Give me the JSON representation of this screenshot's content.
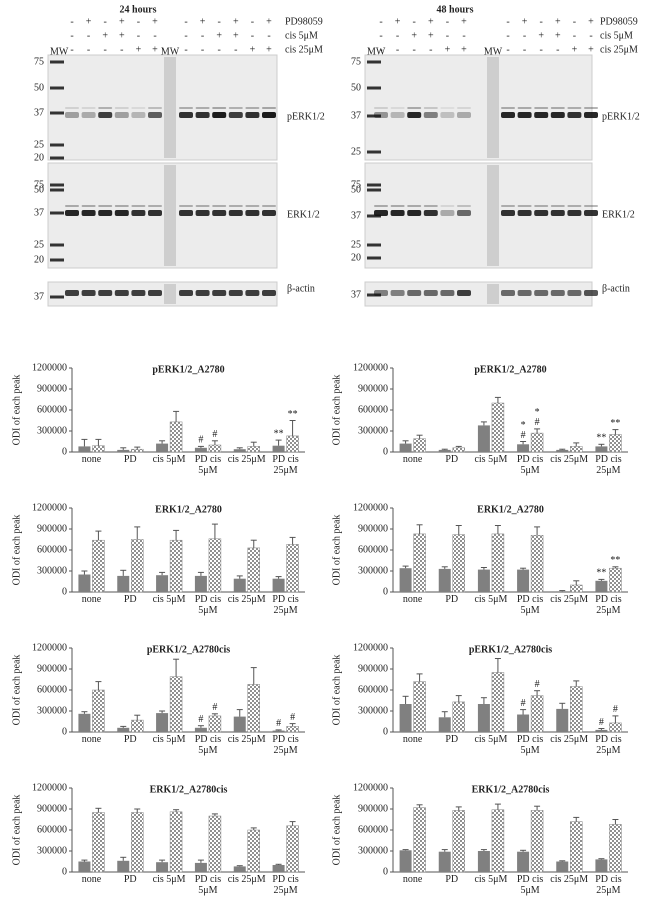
{
  "blots": [
    {
      "title": "24 hours",
      "mw": "MW",
      "mw2": "MW",
      "cell_lines": [
        "A2780",
        "A2780cis"
      ],
      "treatments": [
        {
          "name": "PD98059",
          "signs": [
            "-",
            "+",
            "-",
            "+",
            "-",
            "+",
            "-",
            "+",
            "-",
            "+",
            "-",
            "+"
          ]
        },
        {
          "name": "cis 5μM",
          "signs": [
            "-",
            "-",
            "+",
            "+",
            "-",
            "-",
            "-",
            "-",
            "+",
            "+",
            "-",
            "-"
          ]
        },
        {
          "name": "cis 25μM",
          "signs": [
            "-",
            "-",
            "-",
            "-",
            "+",
            "+",
            "-",
            "-",
            "-",
            "-",
            "+",
            "+"
          ]
        }
      ],
      "panels": [
        {
          "label": "pERK1/2",
          "markers": [
            75,
            50,
            37,
            25,
            20
          ]
        },
        {
          "label": "ERK1/2",
          "markers": [
            75,
            50,
            37,
            25,
            20
          ]
        },
        {
          "label": "β-actin",
          "markers": [
            37
          ]
        }
      ]
    },
    {
      "title": "48 hours",
      "mw": "MW",
      "mw2": "MW",
      "cell_lines": [
        "A2780",
        "A2780cis"
      ],
      "treatments": [
        {
          "name": "PD98059",
          "signs": [
            "-",
            "+",
            "-",
            "+",
            "-",
            "+",
            "-",
            "+",
            "-",
            "+",
            "-",
            "+"
          ]
        },
        {
          "name": "cis 5μM",
          "signs": [
            "-",
            "-",
            "+",
            "+",
            "-",
            "-",
            "-",
            "-",
            "+",
            "+",
            "-",
            "-"
          ]
        },
        {
          "name": "cis 25μM",
          "signs": [
            "-",
            "-",
            "-",
            "-",
            "+",
            "+",
            "-",
            "-",
            "-",
            "-",
            "+",
            "+"
          ]
        }
      ],
      "panels": [
        {
          "label": "pERK1/2",
          "markers": [
            75,
            50,
            37,
            25
          ]
        },
        {
          "label": "ERK1/2",
          "markers": [
            75,
            50,
            37,
            25,
            20
          ]
        },
        {
          "label": "β-actin",
          "markers": [
            37
          ]
        }
      ]
    }
  ],
  "chart_data": [
    {
      "type": "bar",
      "title": "pERK1/2_A2780",
      "y_label": "ODI of each peak",
      "categories": [
        "none",
        "PD",
        "cis 5μM",
        "PD cis 5μM",
        "cis 25μM",
        "PD cis 25μM"
      ],
      "ylim": [
        0,
        1200000
      ],
      "yticks": [
        0,
        300000,
        600000,
        900000,
        1200000
      ],
      "series": [
        {
          "color": "#808080",
          "values": [
            80000,
            30000,
            120000,
            60000,
            40000,
            90000
          ],
          "errors": [
            100000,
            30000,
            40000,
            20000,
            20000,
            80000
          ],
          "marks": [
            null,
            null,
            null,
            [
              "#"
            ],
            null,
            [
              "**"
            ]
          ]
        },
        {
          "color": "#909090",
          "pattern": "checker",
          "values": [
            90000,
            40000,
            430000,
            100000,
            80000,
            230000
          ],
          "errors": [
            90000,
            30000,
            150000,
            60000,
            60000,
            220000
          ],
          "marks": [
            null,
            null,
            null,
            [
              "#"
            ],
            null,
            [
              "**"
            ]
          ]
        }
      ]
    },
    {
      "type": "bar",
      "title": "pERK1/2_A2780",
      "y_label": "ODI of each peak",
      "categories": [
        "none",
        "PD",
        "cis 5μM",
        "PD cis 5μM",
        "cis 25μM",
        "PD cis 25μM"
      ],
      "ylim": [
        0,
        1200000
      ],
      "yticks": [
        0,
        300000,
        600000,
        900000,
        1200000
      ],
      "series": [
        {
          "color": "#808080",
          "values": [
            120000,
            30000,
            380000,
            110000,
            30000,
            80000
          ],
          "errors": [
            40000,
            10000,
            50000,
            40000,
            10000,
            30000
          ],
          "marks": [
            null,
            null,
            null,
            [
              "*",
              "#"
            ],
            null,
            [
              "**"
            ]
          ]
        },
        {
          "color": "#909090",
          "pattern": "checker",
          "values": [
            190000,
            60000,
            700000,
            270000,
            80000,
            250000
          ],
          "errors": [
            50000,
            20000,
            80000,
            60000,
            50000,
            70000
          ],
          "marks": [
            null,
            null,
            null,
            [
              "*",
              "#"
            ],
            null,
            [
              "**"
            ]
          ]
        }
      ]
    },
    {
      "type": "bar",
      "title": "ERK1/2_A2780",
      "y_label": "ODI of each peak",
      "categories": [
        "none",
        "PD",
        "cis 5μM",
        "PD cis 5μM",
        "cis 25μM",
        "PD cis 25μM"
      ],
      "ylim": [
        0,
        1200000
      ],
      "yticks": [
        0,
        300000,
        600000,
        900000,
        1200000
      ],
      "series": [
        {
          "color": "#808080",
          "values": [
            250000,
            230000,
            240000,
            230000,
            190000,
            190000
          ],
          "errors": [
            50000,
            80000,
            40000,
            50000,
            40000,
            30000
          ]
        },
        {
          "color": "#909090",
          "pattern": "checker",
          "values": [
            740000,
            750000,
            740000,
            760000,
            630000,
            680000
          ],
          "errors": [
            130000,
            180000,
            140000,
            210000,
            110000,
            100000
          ]
        }
      ]
    },
    {
      "type": "bar",
      "title": "ERK1/2_A2780",
      "y_label": "ODI of each peak",
      "categories": [
        "none",
        "PD",
        "cis 5μM",
        "PD cis 5μM",
        "cis 25μM",
        "PD cis 25μM"
      ],
      "ylim": [
        0,
        1200000
      ],
      "yticks": [
        0,
        300000,
        600000,
        900000,
        1200000
      ],
      "series": [
        {
          "color": "#808080",
          "values": [
            340000,
            330000,
            320000,
            320000,
            10000,
            160000
          ],
          "errors": [
            30000,
            30000,
            30000,
            20000,
            10000,
            20000
          ],
          "marks": [
            null,
            null,
            null,
            null,
            null,
            [
              "**"
            ]
          ]
        },
        {
          "color": "#909090",
          "pattern": "checker",
          "values": [
            830000,
            820000,
            830000,
            810000,
            100000,
            340000
          ],
          "errors": [
            130000,
            130000,
            120000,
            120000,
            60000,
            20000
          ],
          "marks": [
            null,
            null,
            null,
            null,
            null,
            [
              "**"
            ]
          ]
        }
      ]
    },
    {
      "type": "bar",
      "title": "pERK1/2_A2780cis",
      "y_label": "ODI of each peak",
      "categories": [
        "none",
        "PD",
        "cis 5μM",
        "PD cis 5μM",
        "cis 25μM",
        "PD cis 25μM"
      ],
      "ylim": [
        0,
        1200000
      ],
      "yticks": [
        0,
        300000,
        600000,
        900000,
        1200000
      ],
      "series": [
        {
          "color": "#808080",
          "values": [
            260000,
            60000,
            270000,
            60000,
            220000,
            20000
          ],
          "errors": [
            30000,
            20000,
            30000,
            30000,
            100000,
            10000
          ],
          "marks": [
            null,
            null,
            null,
            [
              "#"
            ],
            null,
            [
              "#"
            ]
          ]
        },
        {
          "color": "#909090",
          "pattern": "checker",
          "values": [
            600000,
            170000,
            790000,
            230000,
            680000,
            80000
          ],
          "errors": [
            120000,
            70000,
            250000,
            30000,
            240000,
            40000
          ],
          "marks": [
            null,
            null,
            null,
            [
              "#"
            ],
            null,
            [
              "#"
            ]
          ]
        }
      ]
    },
    {
      "type": "bar",
      "title": "pERK1/2_A2780cis",
      "y_label": "ODI of each peak",
      "categories": [
        "none",
        "PD",
        "cis 5μM",
        "PD cis 5μM",
        "cis 25μM",
        "PD cis 25μM"
      ],
      "ylim": [
        0,
        1200000
      ],
      "yticks": [
        0,
        300000,
        600000,
        900000,
        1200000
      ],
      "series": [
        {
          "color": "#808080",
          "values": [
            400000,
            210000,
            400000,
            250000,
            330000,
            30000
          ],
          "errors": [
            110000,
            80000,
            90000,
            70000,
            80000,
            20000
          ],
          "marks": [
            null,
            null,
            null,
            [
              "#"
            ],
            null,
            [
              "#"
            ]
          ]
        },
        {
          "color": "#909090",
          "pattern": "checker",
          "values": [
            720000,
            430000,
            850000,
            520000,
            650000,
            130000
          ],
          "errors": [
            110000,
            90000,
            200000,
            70000,
            80000,
            100000
          ],
          "marks": [
            null,
            null,
            null,
            [
              "#"
            ],
            null,
            [
              "#"
            ]
          ]
        }
      ]
    },
    {
      "type": "bar",
      "title": "ERK1/2_A2780cis",
      "y_label": "ODI of each peak",
      "categories": [
        "none",
        "PD",
        "cis 5μM",
        "PD cis 5μM",
        "cis 25μM",
        "PD cis 25μM"
      ],
      "ylim": [
        0,
        1200000
      ],
      "yticks": [
        0,
        300000,
        600000,
        900000,
        1200000
      ],
      "series": [
        {
          "color": "#808080",
          "values": [
            150000,
            160000,
            140000,
            130000,
            80000,
            100000
          ],
          "errors": [
            20000,
            50000,
            30000,
            40000,
            10000,
            10000
          ]
        },
        {
          "color": "#909090",
          "pattern": "checker",
          "values": [
            850000,
            850000,
            860000,
            800000,
            600000,
            660000
          ],
          "errors": [
            60000,
            50000,
            30000,
            30000,
            30000,
            60000
          ]
        }
      ]
    },
    {
      "type": "bar",
      "title": "ERK1/2_A2780cis",
      "y_label": "ODI of each peak",
      "categories": [
        "none",
        "PD",
        "cis 5μM",
        "PD cis 5μM",
        "cis 25μM",
        "PD cis 25μM"
      ],
      "ylim": [
        0,
        1200000
      ],
      "yticks": [
        0,
        300000,
        600000,
        900000,
        1200000
      ],
      "series": [
        {
          "color": "#808080",
          "values": [
            310000,
            290000,
            300000,
            290000,
            150000,
            180000
          ],
          "errors": [
            10000,
            30000,
            20000,
            20000,
            10000,
            10000
          ]
        },
        {
          "color": "#909090",
          "pattern": "checker",
          "values": [
            920000,
            880000,
            890000,
            880000,
            720000,
            680000
          ],
          "errors": [
            40000,
            50000,
            80000,
            60000,
            60000,
            70000
          ]
        }
      ]
    }
  ]
}
